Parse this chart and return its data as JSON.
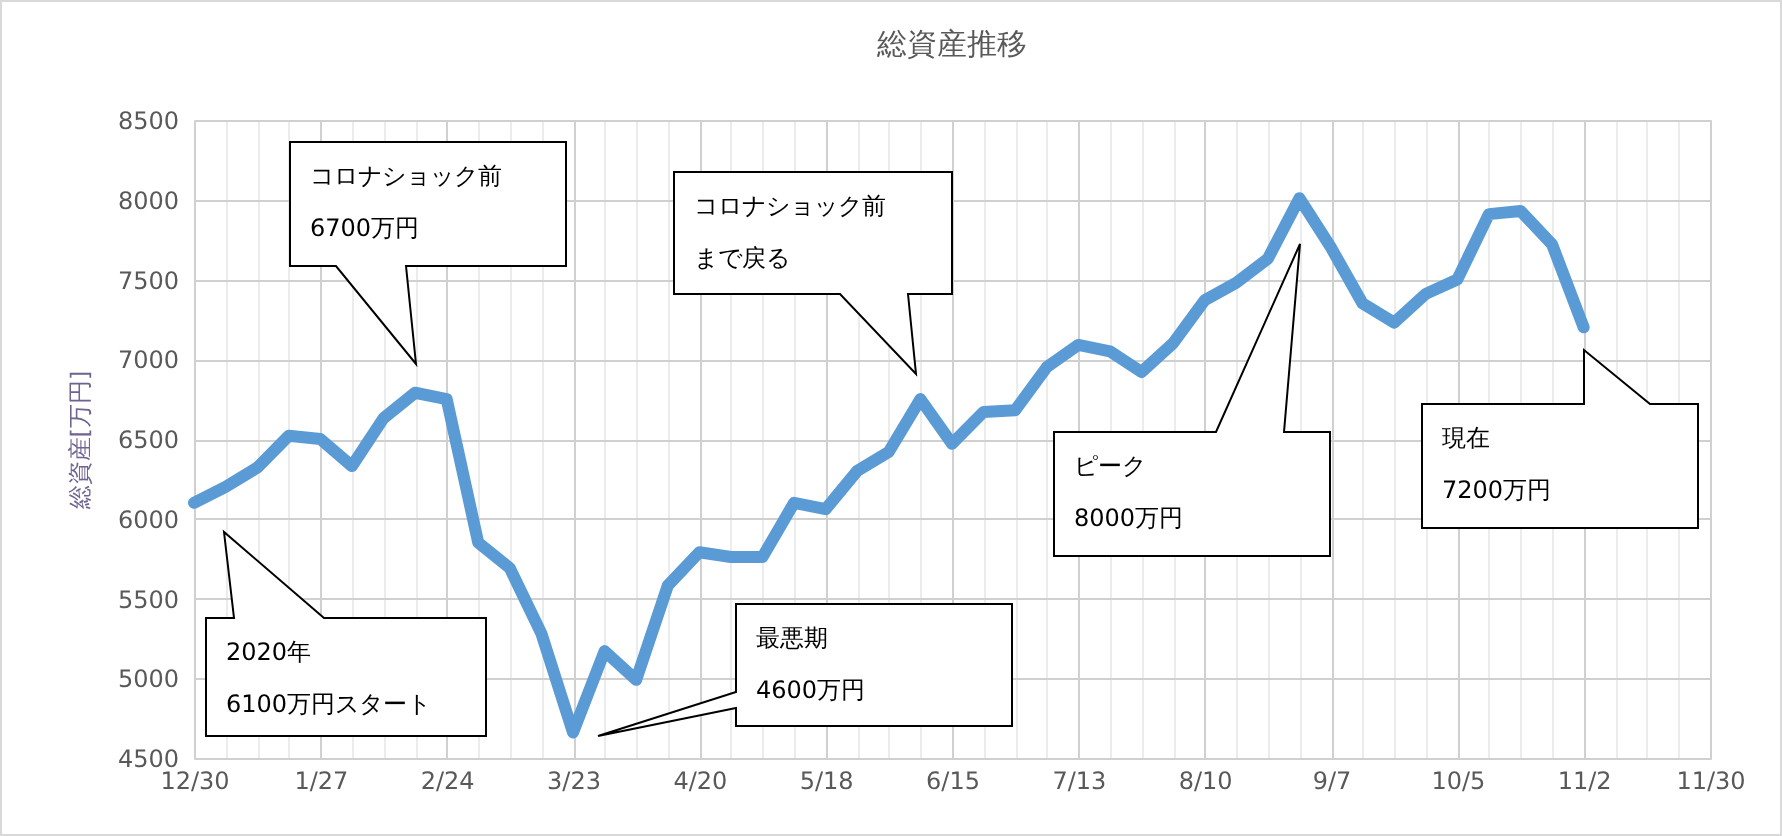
{
  "chart_data": {
    "type": "line",
    "title": "総資産推移",
    "ylabel": "総資産[万円]",
    "categories": [
      "12/30",
      null,
      null,
      null,
      "1/27",
      null,
      null,
      null,
      "2/24",
      null,
      null,
      null,
      "3/23",
      null,
      null,
      null,
      "4/20",
      null,
      null,
      null,
      "5/18",
      null,
      null,
      null,
      "6/15",
      null,
      null,
      null,
      "7/13",
      null,
      null,
      null,
      "8/10",
      null,
      null,
      null,
      "9/7",
      null,
      null,
      null,
      "10/5",
      null,
      null,
      null,
      "11/2",
      null,
      null,
      null,
      "11/30"
    ],
    "values": [
      6100,
      6200,
      6320,
      6520,
      6500,
      6330,
      6630,
      6790,
      6750,
      5850,
      5690,
      5280,
      4660,
      5170,
      4990,
      5580,
      5790,
      5760,
      5760,
      6100,
      6060,
      6300,
      6420,
      6750,
      6470,
      6670,
      6680,
      6950,
      7090,
      7050,
      6920,
      7100,
      7370,
      7480,
      7630,
      8010,
      7700,
      7350,
      7230,
      7410,
      7500,
      7910,
      7930,
      7720,
      7200,
      null,
      null,
      null,
      null
    ],
    "color": "#5b9bd5",
    "ylim": [
      4500,
      8500
    ],
    "yticks": [
      4500,
      5000,
      5500,
      6000,
      6500,
      7000,
      7500,
      8000,
      8500
    ],
    "grid": true,
    "annotations": [
      "2020年\n6100万円スタート",
      "コロナショック前\n6700万円",
      "最悪期\n4600万円",
      "コロナショック前まで戻る",
      "ピーク\n8000万円",
      "現在\n7200万円"
    ]
  }
}
